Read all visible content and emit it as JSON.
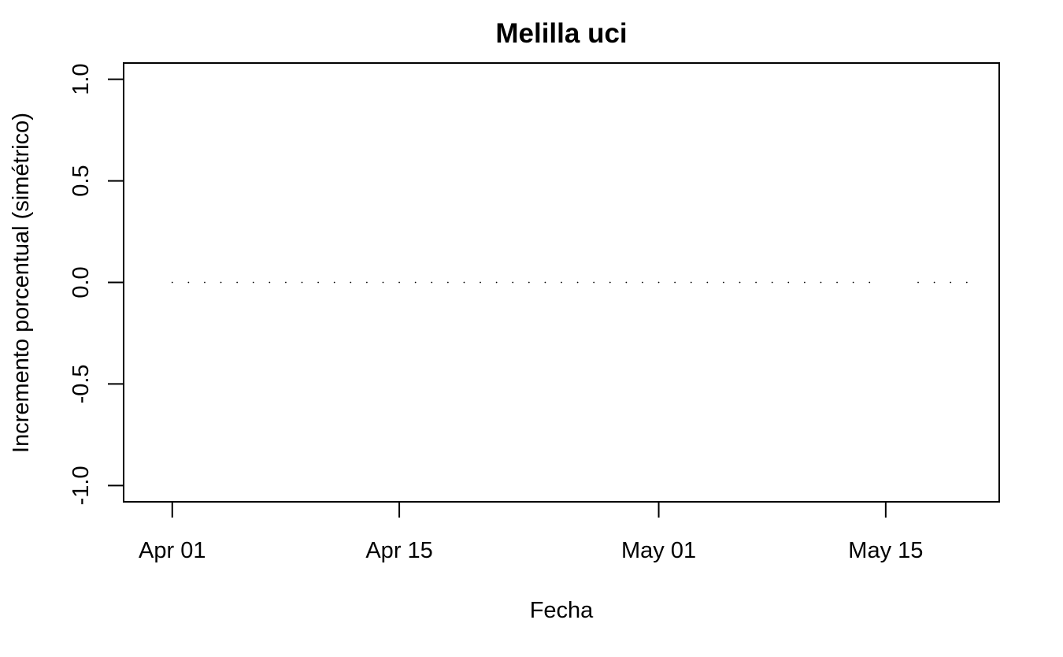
{
  "chart_data": {
    "type": "scatter",
    "title": "Melilla uci",
    "xlabel": "Fecha",
    "ylabel": "Incremento porcentual (simétrico)",
    "x_ticks": [
      {
        "label": "Apr 01",
        "date": "2020-04-01"
      },
      {
        "label": "Apr 15",
        "date": "2020-04-15"
      },
      {
        "label": "May 01",
        "date": "2020-05-01"
      },
      {
        "label": "May 15",
        "date": "2020-05-15"
      }
    ],
    "y_ticks": [
      {
        "label": "-1.0",
        "value": -1.0
      },
      {
        "label": "-0.5",
        "value": -0.5
      },
      {
        "label": "0.0",
        "value": 0.0
      },
      {
        "label": "0.5",
        "value": 0.5
      },
      {
        "label": "1.0",
        "value": 1.0
      }
    ],
    "xlim": [
      "2020-03-29",
      "2020-05-22"
    ],
    "ylim": [
      -1.08,
      1.08
    ],
    "grid": false,
    "legend": "none",
    "series": [
      {
        "color": "#000000",
        "points": [
          {
            "x": "2020-04-01",
            "y": 0
          },
          {
            "x": "2020-04-02",
            "y": 0
          },
          {
            "x": "2020-04-03",
            "y": 0
          },
          {
            "x": "2020-04-04",
            "y": 0
          },
          {
            "x": "2020-04-05",
            "y": 0
          },
          {
            "x": "2020-04-06",
            "y": 0
          },
          {
            "x": "2020-04-07",
            "y": 0
          },
          {
            "x": "2020-04-08",
            "y": 0
          },
          {
            "x": "2020-04-09",
            "y": 0
          },
          {
            "x": "2020-04-10",
            "y": 0
          },
          {
            "x": "2020-04-11",
            "y": 0
          },
          {
            "x": "2020-04-12",
            "y": 0
          },
          {
            "x": "2020-04-13",
            "y": 0
          },
          {
            "x": "2020-04-14",
            "y": 0
          },
          {
            "x": "2020-04-15",
            "y": 0
          },
          {
            "x": "2020-04-16",
            "y": 0
          },
          {
            "x": "2020-04-17",
            "y": 0
          },
          {
            "x": "2020-04-18",
            "y": 0
          },
          {
            "x": "2020-04-19",
            "y": 0
          },
          {
            "x": "2020-04-20",
            "y": 0
          },
          {
            "x": "2020-04-21",
            "y": 0
          },
          {
            "x": "2020-04-22",
            "y": 0
          },
          {
            "x": "2020-04-23",
            "y": 0
          },
          {
            "x": "2020-04-24",
            "y": 0
          },
          {
            "x": "2020-04-25",
            "y": 0
          },
          {
            "x": "2020-04-26",
            "y": 0
          },
          {
            "x": "2020-04-27",
            "y": 0
          },
          {
            "x": "2020-04-28",
            "y": 0
          },
          {
            "x": "2020-04-29",
            "y": 0
          },
          {
            "x": "2020-04-30",
            "y": 0
          },
          {
            "x": "2020-05-01",
            "y": 0
          },
          {
            "x": "2020-05-02",
            "y": 0
          },
          {
            "x": "2020-05-03",
            "y": 0
          },
          {
            "x": "2020-05-04",
            "y": 0
          },
          {
            "x": "2020-05-05",
            "y": 0
          },
          {
            "x": "2020-05-06",
            "y": 0
          },
          {
            "x": "2020-05-07",
            "y": 0
          },
          {
            "x": "2020-05-08",
            "y": 0
          },
          {
            "x": "2020-05-09",
            "y": 0
          },
          {
            "x": "2020-05-10",
            "y": 0
          },
          {
            "x": "2020-05-11",
            "y": 0
          },
          {
            "x": "2020-05-12",
            "y": 0
          },
          {
            "x": "2020-05-13",
            "y": 0
          },
          {
            "x": "2020-05-14",
            "y": 0
          },
          {
            "x": "2020-05-17",
            "y": 0
          },
          {
            "x": "2020-05-18",
            "y": 0
          },
          {
            "x": "2020-05-19",
            "y": 0
          },
          {
            "x": "2020-05-20",
            "y": 0
          }
        ]
      }
    ]
  }
}
